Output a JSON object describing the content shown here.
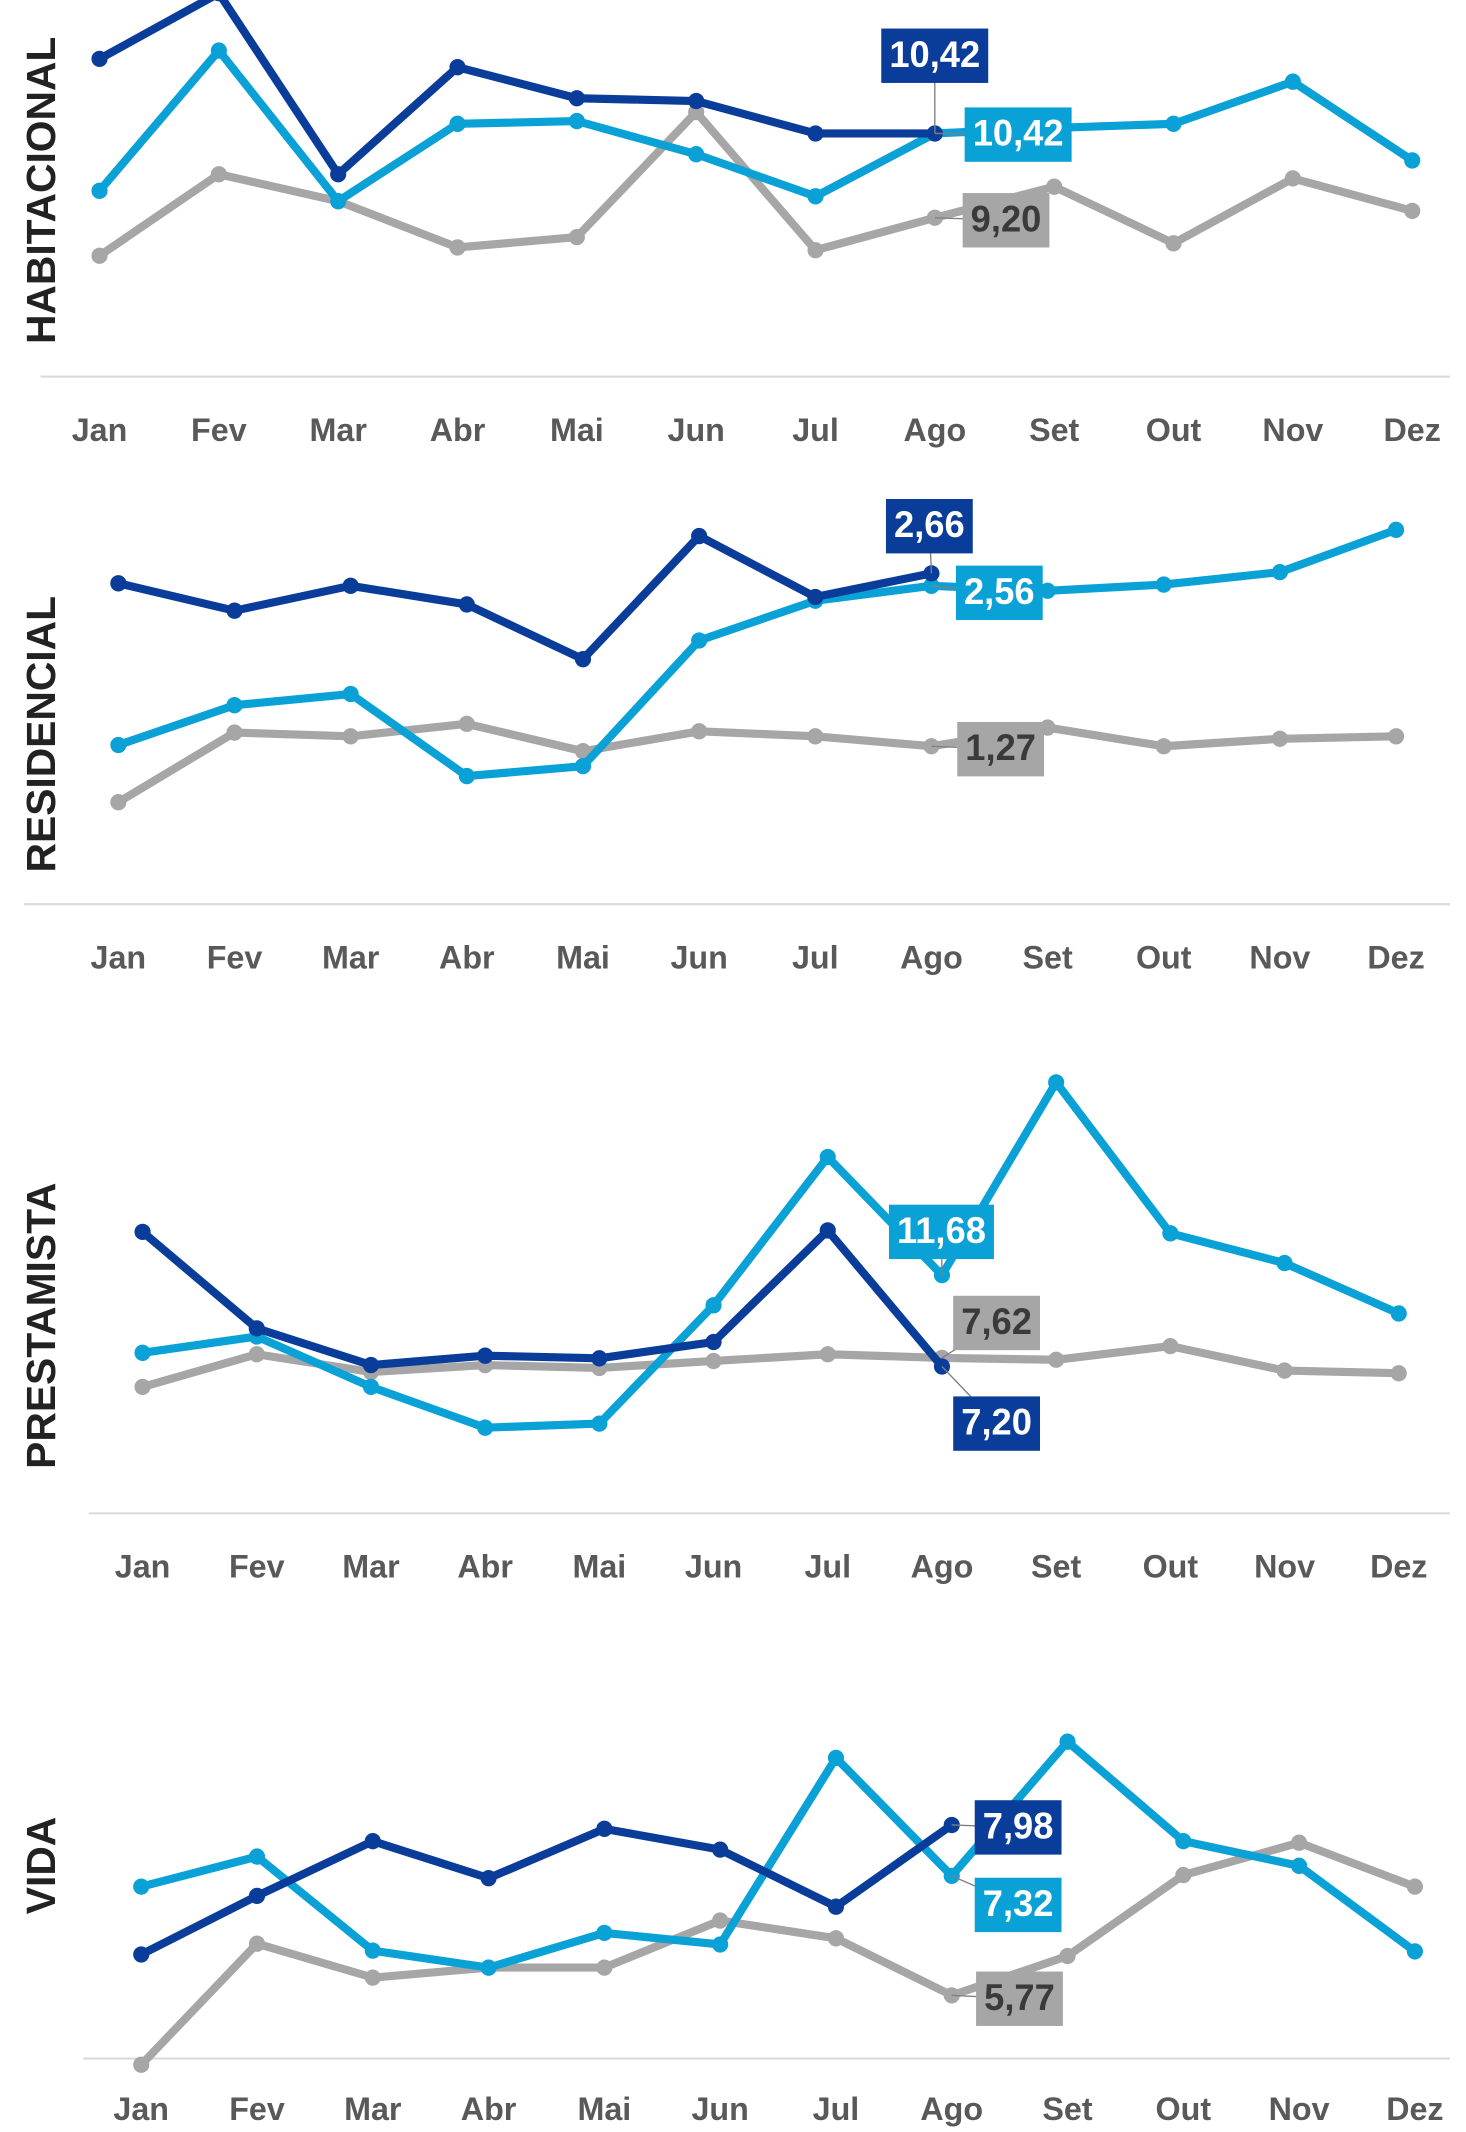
{
  "chart_data": [
    {
      "type": "line",
      "y_label": "HABITACIONAL",
      "categories": [
        "Jan",
        "Fev",
        "Mar",
        "Abr",
        "Mai",
        "Jun",
        "Jul",
        "Ago",
        "Set",
        "Out",
        "Nov",
        "Dez"
      ],
      "ylim": [
        6.9,
        12.5
      ],
      "series": [
        {
          "color": "#0a3d99",
          "values": [
            11.5,
            12.45,
            9.83,
            11.38,
            10.93,
            10.89,
            10.42,
            10.42,
            null,
            null,
            null,
            null
          ],
          "value_labels": [
            null,
            null,
            null,
            null,
            null,
            null,
            null,
            "10,42",
            null,
            null,
            null,
            null
          ]
        },
        {
          "color": "#0aa2d6",
          "values": [
            9.59,
            11.62,
            9.44,
            10.56,
            10.6,
            10.12,
            9.51,
            10.42,
            10.5,
            10.56,
            11.17,
            10.03
          ],
          "value_labels": [
            null,
            null,
            null,
            null,
            null,
            null,
            null,
            "10,42",
            null,
            null,
            null,
            null
          ]
        },
        {
          "color": "#a6a6a6",
          "values": [
            8.65,
            9.83,
            9.44,
            8.77,
            8.92,
            10.73,
            8.73,
            9.2,
            9.65,
            8.83,
            9.77,
            9.3
          ],
          "value_labels": [
            null,
            null,
            null,
            null,
            null,
            null,
            null,
            "9,20",
            null,
            null,
            null,
            null
          ]
        }
      ]
    },
    {
      "type": "line",
      "y_label": "RESIDENCIAL",
      "categories": [
        "Jan",
        "Fev",
        "Mar",
        "Abr",
        "Mai",
        "Jun",
        "Jul",
        "Ago",
        "Set",
        "Out",
        "Nov",
        "Dez"
      ],
      "ylim": [
        0,
        3.4
      ],
      "series": [
        {
          "color": "#0a3d99",
          "values": [
            2.58,
            2.36,
            2.56,
            2.41,
            1.97,
            2.96,
            2.47,
            2.66,
            null,
            null,
            null,
            null
          ],
          "value_labels": [
            null,
            null,
            null,
            null,
            null,
            null,
            null,
            "2,66",
            null,
            null,
            null,
            null
          ]
        },
        {
          "color": "#0aa2d6",
          "values": [
            1.28,
            1.6,
            1.69,
            1.03,
            1.11,
            2.12,
            2.44,
            2.56,
            2.52,
            2.57,
            2.67,
            3.01
          ],
          "value_labels": [
            null,
            null,
            null,
            null,
            null,
            null,
            null,
            "2,56",
            null,
            null,
            null,
            null
          ]
        },
        {
          "color": "#a6a6a6",
          "values": [
            0.82,
            1.38,
            1.35,
            1.45,
            1.23,
            1.39,
            1.35,
            1.27,
            1.42,
            1.27,
            1.33,
            1.35
          ],
          "value_labels": [
            null,
            null,
            null,
            null,
            null,
            null,
            null,
            "1,27",
            null,
            null,
            null,
            null
          ]
        }
      ]
    },
    {
      "type": "line",
      "y_label": "PRESTAMISTA",
      "categories": [
        "Jan",
        "Fev",
        "Mar",
        "Abr",
        "Mai",
        "Jun",
        "Jul",
        "Ago",
        "Set",
        "Out",
        "Nov",
        "Dez"
      ],
      "ylim": [
        0,
        23
      ],
      "series": [
        {
          "color": "#0a3d99",
          "values": [
            13.8,
            9.07,
            7.27,
            7.73,
            7.6,
            8.4,
            13.87,
            7.2,
            null,
            null,
            null,
            null
          ],
          "value_labels": [
            null,
            null,
            null,
            null,
            null,
            null,
            null,
            "7,20",
            null,
            null,
            null,
            null
          ]
        },
        {
          "color": "#0aa2d6",
          "values": [
            7.87,
            8.67,
            6.2,
            4.2,
            4.4,
            10.2,
            17.47,
            11.68,
            21.13,
            13.73,
            12.27,
            9.8
          ],
          "value_labels": [
            null,
            null,
            null,
            null,
            null,
            null,
            null,
            "11,68",
            null,
            null,
            null,
            null
          ]
        },
        {
          "color": "#a6a6a6",
          "values": [
            6.2,
            7.8,
            6.93,
            7.27,
            7.13,
            7.47,
            7.8,
            7.62,
            7.53,
            8.2,
            7.0,
            6.87
          ],
          "value_labels": [
            null,
            null,
            null,
            null,
            null,
            null,
            null,
            "7,62",
            null,
            null,
            null,
            null
          ]
        }
      ]
    },
    {
      "type": "line",
      "y_label": "VIDA",
      "categories": [
        "Jan",
        "Fev",
        "Mar",
        "Abr",
        "Mai",
        "Jun",
        "Jul",
        "Ago",
        "Set",
        "Out",
        "Nov",
        "Dez"
      ],
      "ylim": [
        4.95,
        9.8
      ],
      "series": [
        {
          "color": "#0a3d99",
          "values": [
            6.3,
            7.06,
            7.77,
            7.29,
            7.93,
            7.66,
            6.92,
            7.98,
            null,
            null,
            null,
            null
          ],
          "value_labels": [
            null,
            null,
            null,
            null,
            null,
            null,
            null,
            "7,98",
            null,
            null,
            null,
            null
          ]
        },
        {
          "color": "#0aa2d6",
          "values": [
            7.18,
            7.57,
            6.35,
            6.13,
            6.58,
            6.43,
            8.85,
            7.32,
            9.06,
            7.77,
            7.45,
            6.34
          ],
          "value_labels": [
            null,
            null,
            null,
            null,
            null,
            null,
            null,
            "7,32",
            null,
            null,
            null,
            null
          ]
        },
        {
          "color": "#a6a6a6",
          "values": [
            4.87,
            6.44,
            6.0,
            6.13,
            6.13,
            6.74,
            6.51,
            5.77,
            6.28,
            7.33,
            7.75,
            7.18
          ],
          "value_labels": [
            null,
            null,
            null,
            null,
            null,
            null,
            null,
            "5,77",
            null,
            null,
            null,
            null
          ]
        }
      ]
    }
  ]
}
